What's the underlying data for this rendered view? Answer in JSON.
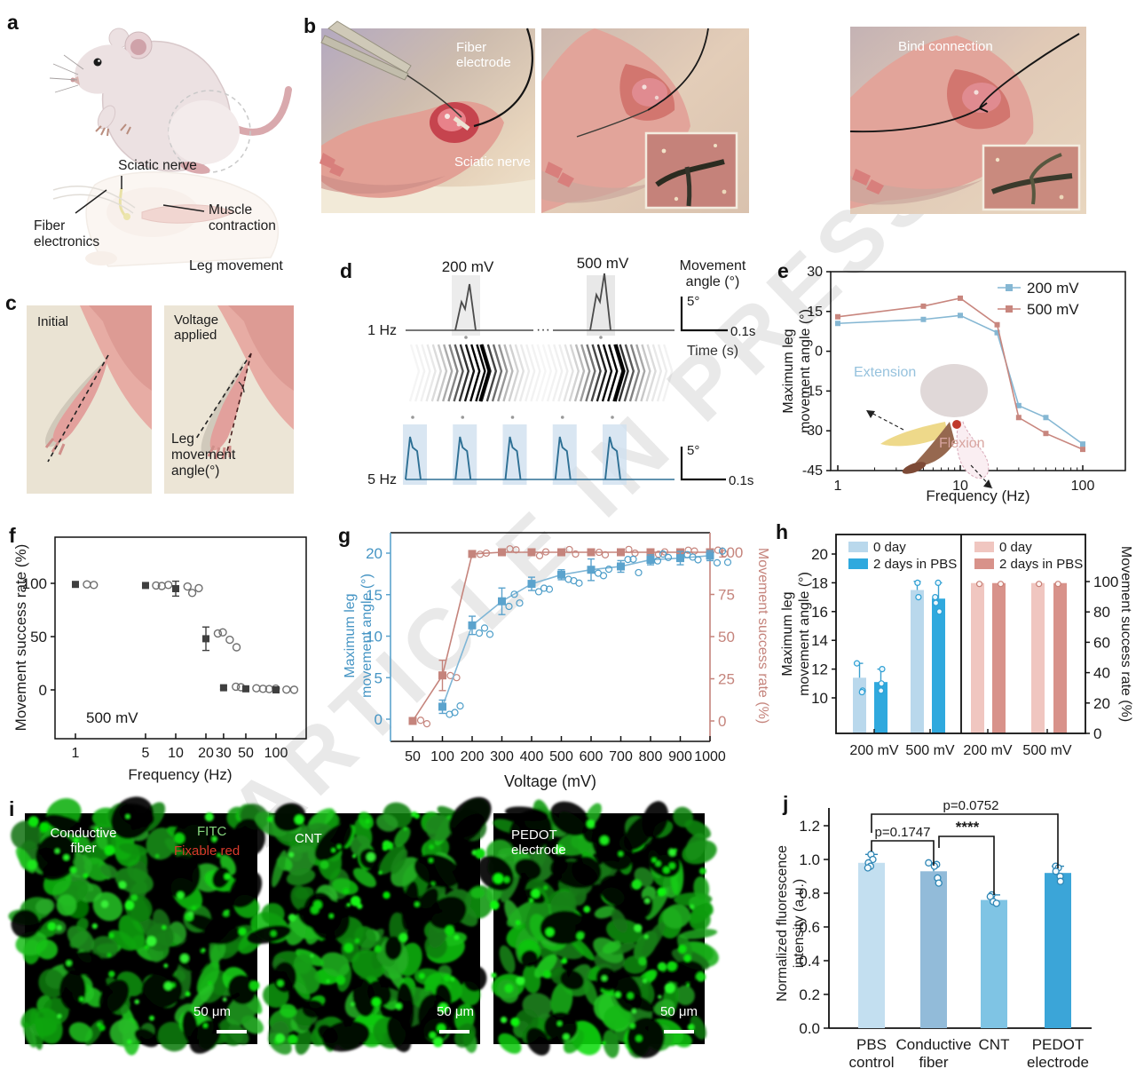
{
  "figure": {
    "watermark": "ARTICLE IN PRESS"
  },
  "panel_a": {
    "letter": "a",
    "labels": {
      "sciatic_nerve": "Sciatic nerve",
      "fiber_electronics": "Fiber electronics",
      "muscle_contraction": "Muscle contraction",
      "leg_movement": "Leg movement"
    }
  },
  "panel_b": {
    "letter": "b",
    "photos": [
      {
        "label_top": "Fiber electrode",
        "label_bottom": "Sciatic nerve"
      },
      {},
      {
        "label_top": "Bind connection"
      }
    ]
  },
  "panel_c": {
    "letter": "c",
    "photo1_label": "Initial",
    "photo2_label": "Voltage applied",
    "angle_label": "Leg movement angle(°)"
  },
  "panel_d": {
    "letter": "d"
  },
  "panel_e": {
    "letter": "e"
  },
  "panel_f": {
    "letter": "f"
  },
  "panel_g": {
    "letter": "g"
  },
  "panel_h": {
    "letter": "h"
  },
  "panel_i": {
    "letter": "i",
    "images": [
      {
        "line1": "Conductive",
        "line2": "fiber",
        "fitc": "FITC",
        "fixable": "Fixable red",
        "scale": "50 μm"
      },
      {
        "line1": "CNT",
        "line2": "",
        "scale": "50 μm"
      },
      {
        "line1": "PEDOT",
        "line2": "electrode",
        "scale": "50 μm"
      }
    ]
  },
  "panel_j": {
    "letter": "j"
  },
  "chart_data": [
    {
      "id": "d",
      "type": "waveform",
      "row1_label": "1 Hz",
      "row2_label": "5 Hz",
      "voltage_labels": [
        "200 mV",
        "500 mV"
      ],
      "axis_label": [
        "Movement",
        "angle (°)"
      ],
      "time_label": "Time (s)",
      "scale_deg": "5°",
      "scale_time": "0.1s",
      "row1_color": "#4a4a4a",
      "row2_color": "#2d6f94",
      "row2_pulses": 5
    },
    {
      "id": "e",
      "type": "line",
      "xscale": "log",
      "xlabel": "Frequency (Hz)",
      "ylabel": "Maximum leg\nmovement angle (°)",
      "x": [
        1,
        5,
        10,
        20,
        30,
        50,
        100
      ],
      "series": [
        {
          "name": "200 mV",
          "color": "#85b7d3",
          "values": [
            10.5,
            12,
            13.5,
            7,
            -20.5,
            -25,
            -35
          ]
        },
        {
          "name": "500 mV",
          "color": "#c8867e",
          "values": [
            13,
            17,
            20,
            10,
            -25,
            -31,
            -37
          ]
        }
      ],
      "ylim": [
        -45,
        30
      ],
      "yticks": [
        30,
        15,
        0,
        -15,
        -30,
        -45
      ],
      "xticks": [
        1,
        10,
        100
      ],
      "inset": {
        "extension": "Extension",
        "flexion": "Flexion",
        "extension_color": "#96c2dd",
        "flexion_color": "#d8a5a0"
      }
    },
    {
      "id": "f",
      "type": "scatter",
      "xscale": "log",
      "xlabel": "Frequency (Hz)",
      "ylabel": "Movement success rate (%)",
      "annotation": "500 mV",
      "x": [
        1,
        5,
        10,
        20,
        30,
        50,
        100
      ],
      "mean": [
        99,
        98,
        95,
        48,
        2,
        1,
        0
      ],
      "err": [
        1,
        1,
        7,
        11,
        1.5,
        1,
        1
      ],
      "replicates": [
        [
          99,
          98.5
        ],
        [
          98,
          97.5,
          98.5
        ],
        [
          97,
          91,
          95.5
        ],
        [
          53,
          54,
          47,
          40
        ],
        [
          3,
          2.5
        ],
        [
          1.5,
          1,
          0.8,
          1.2
        ],
        [
          0.3,
          0.1
        ]
      ],
      "yticks": [
        0,
        50,
        100
      ],
      "xticks": [
        1,
        5,
        10,
        20,
        30,
        50,
        100
      ],
      "marker_color": "#3f3f3f",
      "replicate_color": "#6f6f6f"
    },
    {
      "id": "g",
      "type": "dual-line",
      "xlabel": "Voltage (mV)",
      "ylabel_left": "Maximum leg\nmovement angle (°)",
      "ylabel_right": "Movement success rate (%)",
      "left_color": "#5ba3cd",
      "right_color": "#c5847c",
      "categories": [
        50,
        100,
        200,
        300,
        400,
        500,
        600,
        700,
        800,
        900,
        1000
      ],
      "angle": {
        "values": [
          null,
          1.5,
          11.3,
          14.2,
          16.3,
          17.4,
          18,
          18.4,
          19.2,
          19.4,
          19.7
        ],
        "err": [
          0,
          0.8,
          1.1,
          1.6,
          0.8,
          0.6,
          1.3,
          0.7,
          0.6,
          0.8,
          0.6
        ]
      },
      "success": {
        "values": [
          0,
          27,
          99,
          100,
          100,
          100,
          100,
          100,
          100,
          100,
          100
        ],
        "err": [
          0,
          9,
          1,
          0,
          0,
          0,
          0,
          0,
          0,
          0,
          0
        ]
      },
      "yticks_left": [
        0,
        5,
        10,
        15,
        20
      ],
      "yticks_right": [
        0,
        25,
        50,
        75,
        100
      ]
    },
    {
      "id": "h",
      "type": "grouped-bar-dual",
      "ylabel_left": "Maximum leg\nmovement angle (°)",
      "ylabel_right": "Movement success rate (%)",
      "legend": [
        "0 day",
        "2 days in PBS"
      ],
      "groups": [
        "200 mV",
        "500 mV",
        "200 mV",
        "500 mV"
      ],
      "left": {
        "colors": [
          "#b9d8ec",
          "#2fa9de"
        ],
        "values_0day": [
          11.4,
          17.5
        ],
        "values_2day": [
          11.1,
          16.9
        ],
        "err": [
          1,
          0.9,
          0.6,
          1.1
        ],
        "dots": [
          [
            12.4,
            10.5,
            10.4
          ],
          [
            12,
            11,
            10.5
          ],
          [
            18,
            17
          ],
          [
            18,
            16.6,
            16,
            17
          ]
        ],
        "yticks": [
          10,
          12,
          14,
          16,
          18,
          20
        ]
      },
      "right": {
        "colors": [
          "#f0c6c0",
          "#d8928a"
        ],
        "values_0day": [
          99,
          99
        ],
        "values_2day": [
          99,
          99
        ],
        "yticks": [
          0,
          20,
          40,
          60,
          80,
          100
        ]
      }
    },
    {
      "id": "j",
      "type": "bar",
      "ylabel": "Normalized fluorescence\nintensity (a.u.)",
      "categories": [
        "PBS\ncontrol",
        "Conductive\nfiber",
        "CNT",
        "PEDOT\nelectrode"
      ],
      "values": [
        0.98,
        0.93,
        0.76,
        0.92
      ],
      "errors": [
        0.05,
        0.05,
        0.03,
        0.04
      ],
      "colors": [
        "#c3dff0",
        "#92bbd9",
        "#7fc4e4",
        "#3ba5d8"
      ],
      "dot_color": "#2e86b5",
      "replicates": [
        [
          1.03,
          1.0,
          0.98,
          0.96,
          0.95
        ],
        [
          0.98,
          0.97,
          0.96,
          0.89,
          0.86
        ],
        [
          0.79,
          0.78,
          0.75,
          0.74
        ],
        [
          0.96,
          0.95,
          0.93,
          0.9,
          0.87
        ]
      ],
      "yticks": [
        0,
        0.2,
        0.4,
        0.6,
        0.8,
        1.0,
        1.2
      ],
      "sig": [
        {
          "from": 0,
          "to": 1,
          "label": "p=0.1747"
        },
        {
          "from": 1,
          "to": 2,
          "label": "****"
        },
        {
          "from": 0,
          "to": 3,
          "label": "p=0.0752"
        }
      ]
    }
  ]
}
